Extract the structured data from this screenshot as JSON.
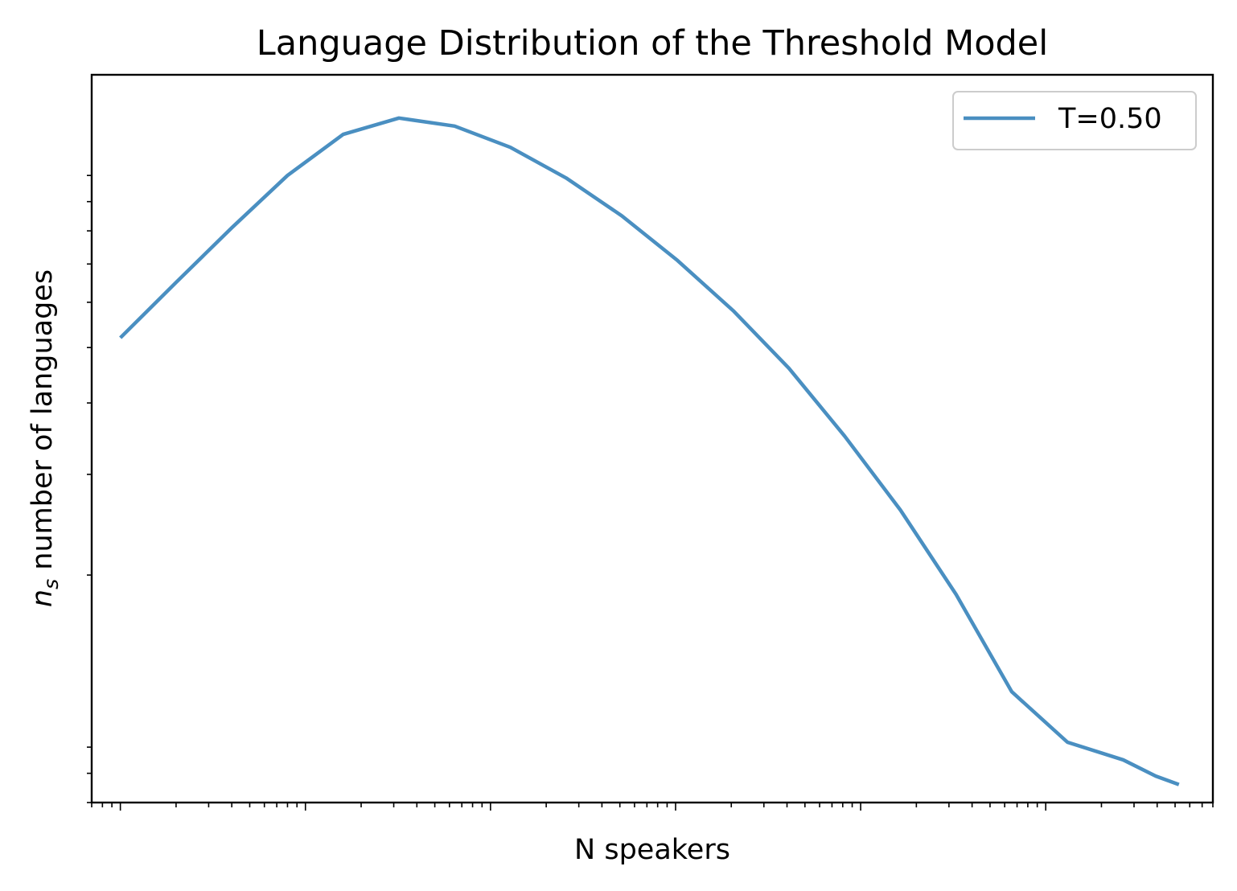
{
  "chart_data": {
    "type": "line",
    "title": "Language Distribution of the Threshold Model",
    "xlabel": "N speakers",
    "ylabel_italic": "n",
    "ylabel_sub": "s",
    "ylabel_rest": " number of languages",
    "xscale": "log",
    "yscale": "log",
    "xlim": [
      0.7,
      800000
    ],
    "ylim": [
      0.8,
      15
    ],
    "x_tick_labels_shown": false,
    "y_tick_labels_shown": false,
    "grid": false,
    "legend_position": "top-right",
    "series": [
      {
        "name": "T=0.50",
        "color": "#4a8fc1",
        "x": [
          1,
          2,
          4,
          8,
          16,
          32,
          64,
          128,
          256,
          512,
          1024,
          2048,
          4096,
          8192,
          16384,
          32768,
          65536,
          131072,
          262144,
          393216,
          524288
        ],
        "y": [
          5.2,
          6.5,
          8.1,
          10.0,
          11.8,
          12.6,
          12.2,
          11.2,
          9.9,
          8.5,
          7.1,
          5.8,
          4.6,
          3.5,
          2.6,
          1.85,
          1.25,
          1.02,
          0.95,
          0.89,
          0.86
        ]
      }
    ]
  }
}
